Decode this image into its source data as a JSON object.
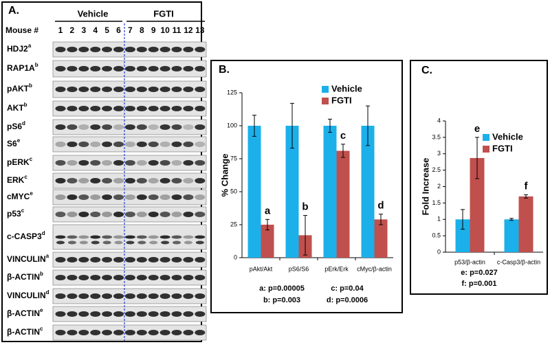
{
  "blot": {
    "label": "A.",
    "groups": [
      "Vehicle",
      "FGTI"
    ],
    "mouse_label": "Mouse #",
    "mice": [
      "1",
      "2",
      "3",
      "4",
      "5",
      "6",
      "7",
      "8",
      "9",
      "10",
      "11",
      "12",
      "13"
    ],
    "rows": [
      {
        "name": "HDJ2",
        "sup": "a"
      },
      {
        "name": "RAP1A",
        "sup": "b"
      },
      {
        "name": "pAKT",
        "sup": "b"
      },
      {
        "name": "AKT",
        "sup": "b"
      },
      {
        "name": "pS6",
        "sup": "d"
      },
      {
        "name": "S6",
        "sup": "e"
      },
      {
        "name": "pERK",
        "sup": "c"
      },
      {
        "name": "ERK",
        "sup": "c"
      },
      {
        "name": "cMYC",
        "sup": "e"
      },
      {
        "name": "p53",
        "sup": "c"
      },
      {
        "name": "c-CASP3",
        "sup": "d"
      },
      {
        "name": "VINCULIN",
        "sup": "a"
      },
      {
        "name": "β-ACTIN",
        "sup": "b"
      },
      {
        "name": "VINCULIN",
        "sup": "d"
      },
      {
        "name": "β-ACTIN",
        "sup": "e"
      },
      {
        "name": "β-ACTIN",
        "sup": "c"
      }
    ]
  },
  "chart_data": [
    {
      "type": "bar",
      "title": "B.",
      "y_label": "% Change",
      "categories": [
        "pAkt/Akt",
        "pS6/S6",
        "pErk/Erk",
        "cMyc/β-actin"
      ],
      "series": [
        {
          "name": "Vehicle",
          "color": "#1cb0ea",
          "values": [
            100,
            100,
            100,
            100
          ],
          "errors": [
            8,
            17,
            5,
            15
          ]
        },
        {
          "name": "FGTI",
          "color": "#c0504d",
          "values": [
            25,
            17,
            81,
            29
          ],
          "errors": [
            4,
            15,
            5,
            4
          ]
        }
      ],
      "annotations": [
        "a",
        "b",
        "c",
        "d"
      ],
      "notes": [
        "a: p=0.00005",
        "c: p=0.04",
        "b: p=0.003",
        "d: p=0.0006"
      ],
      "ylim": [
        0,
        125
      ],
      "yticks": [
        0,
        25,
        50,
        75,
        100,
        125
      ],
      "legend": "top-right"
    },
    {
      "type": "bar",
      "title": "C.",
      "y_label": "Fold Increase",
      "categories": [
        "p53/β-actin",
        "c-Casp3/β-actin"
      ],
      "series": [
        {
          "name": "Vehicle",
          "color": "#1cb0ea",
          "values": [
            1,
            1
          ],
          "errors": [
            0.3,
            0.03
          ]
        },
        {
          "name": "FGTI",
          "color": "#c0504d",
          "values": [
            2.87,
            1.7
          ],
          "errors": [
            0.63,
            0.05
          ]
        }
      ],
      "annotations": [
        "e",
        "f"
      ],
      "notes": [
        "e: p=0.027",
        "f: p=0.001"
      ],
      "ylim": [
        0,
        4
      ],
      "yticks": [
        0,
        0.5,
        1,
        1.5,
        2,
        2.5,
        3,
        3.5,
        4
      ],
      "legend": "top-right"
    }
  ]
}
